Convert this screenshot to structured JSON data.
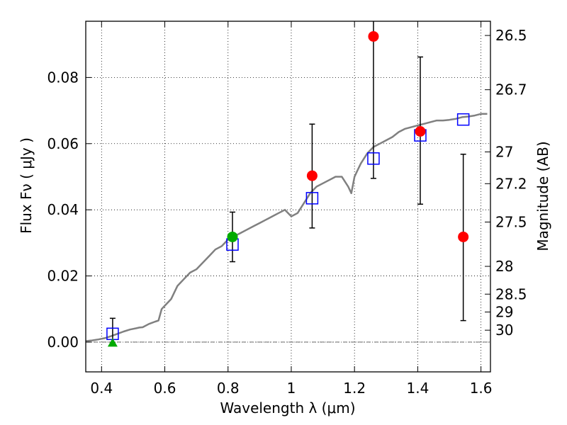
{
  "chart_data": {
    "type": "scatter",
    "xlabel": "Wavelength  λ (μm)",
    "ylabel_left": "Flux  Fν  ( μJy )",
    "ylabel_right": "Magnitude (AB)",
    "xlim": [
      0.35,
      1.63
    ],
    "ylim": [
      -0.009,
      0.097
    ],
    "x_ticks": [
      0.4,
      0.6,
      0.8,
      1.0,
      1.2,
      1.4,
      1.6
    ],
    "x_tick_labels": [
      "0.4",
      "0.6",
      "0.8",
      "1",
      "1.2",
      "1.4",
      "1.6"
    ],
    "y_ticks": [
      0.0,
      0.02,
      0.04,
      0.06,
      0.08
    ],
    "y_tick_labels": [
      "0.00",
      "0.02",
      "0.04",
      "0.06",
      "0.08"
    ],
    "right_ticks": [
      {
        "label": "26.5",
        "flux": 0.0927
      },
      {
        "label": "26.7",
        "flux": 0.0763
      },
      {
        "label": "27",
        "flux": 0.0575
      },
      {
        "label": "27.2",
        "flux": 0.0479
      },
      {
        "label": "27.5",
        "flux": 0.0363
      },
      {
        "label": "28",
        "flux": 0.0229
      },
      {
        "label": "28.5",
        "flux": 0.0145
      },
      {
        "label": "29",
        "flux": 0.0091
      },
      {
        "label": "30",
        "flux": 0.0036
      }
    ],
    "grid": true,
    "model_curve": {
      "color": "#808080",
      "x": [
        0.35,
        0.37,
        0.39,
        0.41,
        0.43,
        0.45,
        0.47,
        0.49,
        0.51,
        0.52,
        0.53,
        0.55,
        0.57,
        0.58,
        0.59,
        0.6,
        0.62,
        0.63,
        0.64,
        0.66,
        0.68,
        0.7,
        0.72,
        0.74,
        0.76,
        0.78,
        0.8,
        0.82,
        0.84,
        0.86,
        0.88,
        0.9,
        0.92,
        0.94,
        0.96,
        0.98,
        1.0,
        1.02,
        1.04,
        1.06,
        1.08,
        1.1,
        1.12,
        1.14,
        1.16,
        1.18,
        1.19,
        1.2,
        1.21,
        1.22,
        1.24,
        1.26,
        1.28,
        1.3,
        1.32,
        1.34,
        1.36,
        1.38,
        1.4,
        1.42,
        1.44,
        1.46,
        1.48,
        1.5,
        1.52,
        1.54,
        1.56,
        1.58,
        1.6,
        1.62
      ],
      "y": [
        0.0003,
        0.0005,
        0.0008,
        0.0012,
        0.0018,
        0.0025,
        0.0032,
        0.0038,
        0.0042,
        0.0044,
        0.0045,
        0.0055,
        0.0062,
        0.0065,
        0.01,
        0.011,
        0.013,
        0.015,
        0.017,
        0.019,
        0.021,
        0.022,
        0.024,
        0.026,
        0.028,
        0.029,
        0.031,
        0.032,
        0.033,
        0.034,
        0.035,
        0.036,
        0.037,
        0.038,
        0.039,
        0.04,
        0.038,
        0.039,
        0.042,
        0.045,
        0.047,
        0.048,
        0.049,
        0.05,
        0.05,
        0.047,
        0.045,
        0.05,
        0.052,
        0.054,
        0.057,
        0.059,
        0.06,
        0.061,
        0.062,
        0.0635,
        0.0645,
        0.065,
        0.0655,
        0.066,
        0.0665,
        0.067,
        0.067,
        0.0672,
        0.0675,
        0.068,
        0.0682,
        0.0685,
        0.069,
        0.069
      ]
    },
    "model_photometry": {
      "color": "#0000ff",
      "x": [
        0.435,
        0.814,
        1.066,
        1.26,
        1.408,
        1.544
      ],
      "y": [
        0.0025,
        0.0295,
        0.0435,
        0.0555,
        0.0625,
        0.0673
      ]
    },
    "observed": {
      "color": "#ff0000",
      "x": [
        1.066,
        1.26,
        1.408,
        1.544
      ],
      "y": [
        0.0503,
        0.0924,
        0.0637,
        0.0318
      ],
      "yerr_low": [
        0.0345,
        0.0495,
        0.0417,
        0.0065
      ],
      "yerr_high": [
        0.0659,
        0.098,
        0.0862,
        0.0568
      ]
    },
    "observed_green": {
      "color": "#00aa00",
      "x": [
        0.814
      ],
      "y": [
        0.0318
      ],
      "yerr_low": [
        0.0243
      ],
      "yerr_high": [
        0.0393
      ]
    },
    "upper_limit": {
      "color": "#00aa00",
      "x": [
        0.435
      ],
      "y": [
        -0.0003
      ],
      "yerr_high": [
        0.0072
      ]
    }
  }
}
